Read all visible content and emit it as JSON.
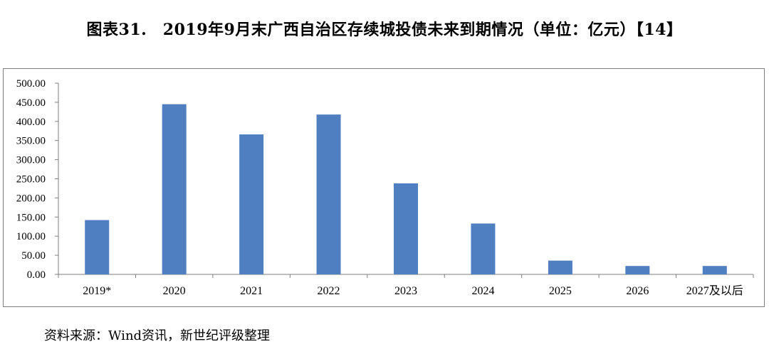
{
  "title": "图表31.　2019年9月末广西自治区存续城投债未来到期情况（单位：亿元）【14】",
  "source": "资料来源：Wind资讯，新世纪评级整理",
  "colors": {
    "bar": "#4f7fc0",
    "axis": "#7f7f7f"
  },
  "chart_data": {
    "type": "bar",
    "title": "图表31.　2019年9月末广西自治区存续城投债未来到期情况（单位：亿元）【14】",
    "xlabel": "",
    "ylabel": "",
    "ylim": [
      0,
      500
    ],
    "yticks": [
      "0.00",
      "50.00",
      "100.00",
      "150.00",
      "200.00",
      "250.00",
      "300.00",
      "350.00",
      "400.00",
      "450.00",
      "500.00"
    ],
    "categories": [
      "2019*",
      "2020",
      "2021",
      "2022",
      "2023",
      "2024",
      "2025",
      "2026",
      "2027及以后"
    ],
    "values": [
      142,
      445,
      366,
      418,
      238,
      133,
      36,
      22,
      22
    ],
    "grid": false,
    "legend": "none"
  }
}
